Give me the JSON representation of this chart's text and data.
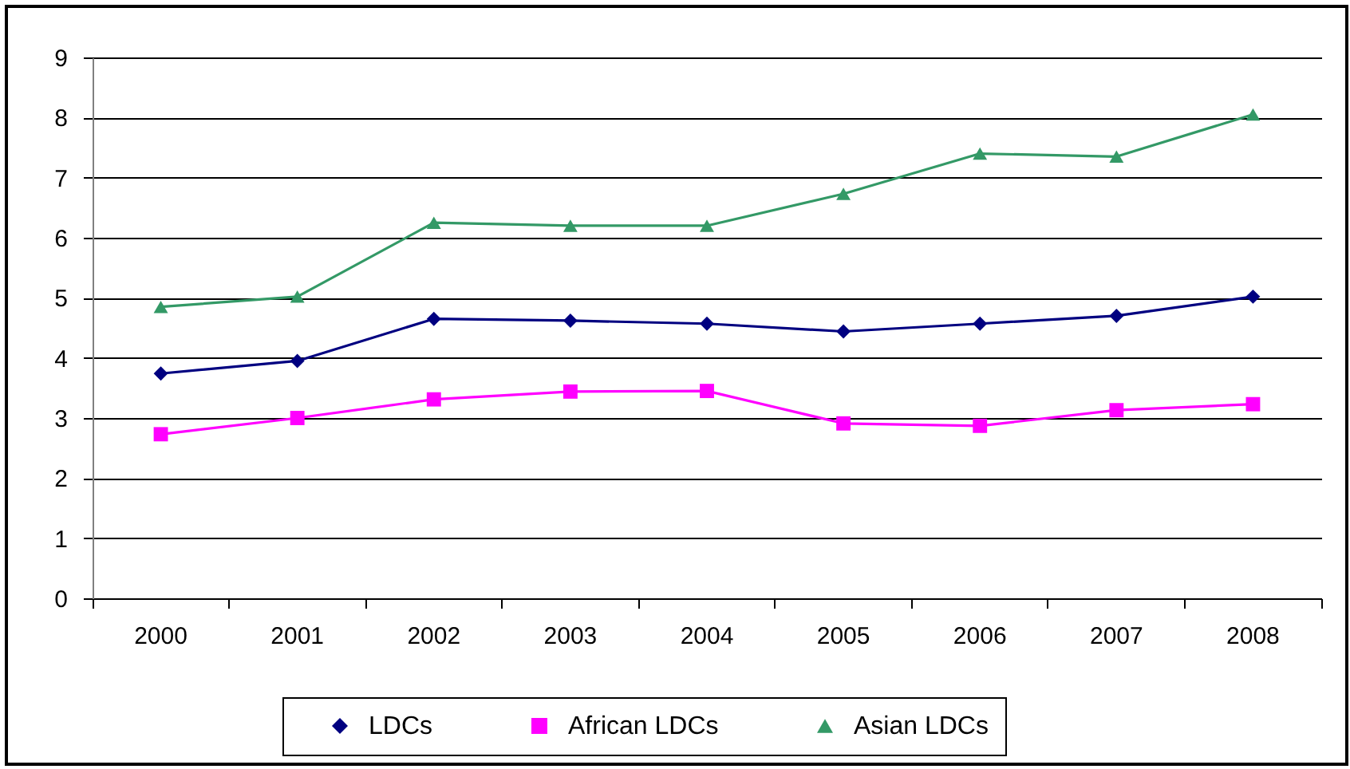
{
  "chart_data": {
    "type": "line",
    "categories": [
      "2000",
      "2001",
      "2002",
      "2003",
      "2004",
      "2005",
      "2006",
      "2007",
      "2008"
    ],
    "series": [
      {
        "name": "LDCs",
        "color": "#000080",
        "marker": "diamond",
        "values": [
          3.74,
          3.95,
          4.65,
          4.62,
          4.57,
          4.44,
          4.57,
          4.7,
          5.02
        ]
      },
      {
        "name": "African LDCs",
        "color": "#ff00ff",
        "marker": "square",
        "values": [
          2.73,
          3.0,
          3.31,
          3.44,
          3.45,
          2.91,
          2.87,
          3.13,
          3.23
        ]
      },
      {
        "name": "Asian LDCs",
        "color": "#339966",
        "marker": "triangle",
        "values": [
          4.85,
          5.02,
          6.25,
          6.2,
          6.2,
          6.73,
          7.4,
          7.35,
          8.05
        ]
      }
    ],
    "ylim": [
      0,
      9
    ],
    "yticks": [
      0,
      1,
      2,
      3,
      4,
      5,
      6,
      7,
      8,
      9
    ],
    "grid": "y",
    "legend": "bottom"
  }
}
